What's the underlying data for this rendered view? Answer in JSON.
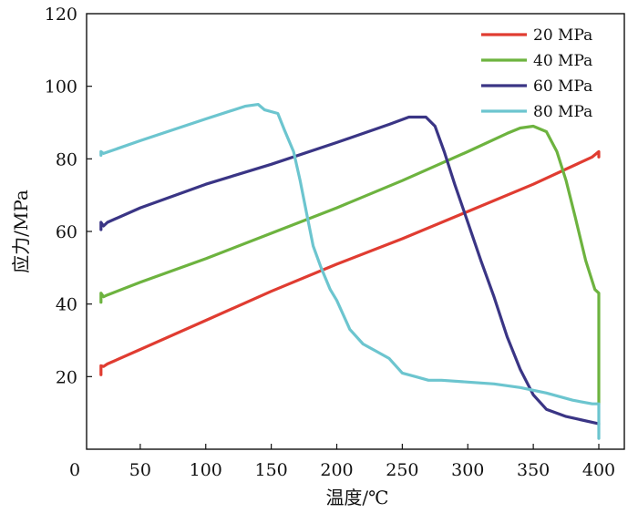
{
  "chart_data": {
    "type": "line",
    "xlabel": "温度/℃",
    "ylabel": "应力/MPa",
    "xlim": [
      0,
      400
    ],
    "ylim": [
      0,
      120
    ],
    "xticks": [
      0,
      50,
      100,
      150,
      200,
      250,
      300,
      350,
      400
    ],
    "yticks": [
      20,
      40,
      60,
      80,
      100,
      120
    ],
    "grid": false,
    "legend_position": "top-right",
    "series": [
      {
        "name": "20 MPa",
        "color": "#e03c31",
        "points": [
          [
            20,
            20.5
          ],
          [
            20,
            23
          ],
          [
            22,
            22.8
          ],
          [
            25,
            23.5
          ],
          [
            50,
            27.5
          ],
          [
            100,
            35.5
          ],
          [
            150,
            43.5
          ],
          [
            200,
            51
          ],
          [
            250,
            58
          ],
          [
            300,
            65.5
          ],
          [
            350,
            73
          ],
          [
            395,
            80.5
          ],
          [
            400,
            82
          ],
          [
            400,
            80.5
          ]
        ]
      },
      {
        "name": "40 MPa",
        "color": "#6db33f",
        "points": [
          [
            20,
            40.5
          ],
          [
            20,
            43
          ],
          [
            22,
            42
          ],
          [
            25,
            42.5
          ],
          [
            50,
            46
          ],
          [
            100,
            52.5
          ],
          [
            150,
            59.5
          ],
          [
            200,
            66.5
          ],
          [
            250,
            74
          ],
          [
            300,
            82
          ],
          [
            330,
            87
          ],
          [
            340,
            88.5
          ],
          [
            350,
            89
          ],
          [
            360,
            87.5
          ],
          [
            368,
            82
          ],
          [
            375,
            74
          ],
          [
            382,
            64
          ],
          [
            390,
            52
          ],
          [
            397,
            44
          ],
          [
            400,
            43
          ],
          [
            400,
            14
          ],
          [
            400,
            12.5
          ]
        ]
      },
      {
        "name": "60 MPa",
        "color": "#3a3585",
        "points": [
          [
            20,
            60.5
          ],
          [
            20,
            62.5
          ],
          [
            22,
            61.5
          ],
          [
            25,
            62.5
          ],
          [
            50,
            66.5
          ],
          [
            100,
            73
          ],
          [
            150,
            78.5
          ],
          [
            200,
            84.5
          ],
          [
            240,
            89.5
          ],
          [
            255,
            91.5
          ],
          [
            268,
            91.5
          ],
          [
            275,
            89
          ],
          [
            282,
            82
          ],
          [
            290,
            73
          ],
          [
            300,
            62.5
          ],
          [
            310,
            52
          ],
          [
            320,
            42
          ],
          [
            330,
            31
          ],
          [
            340,
            22
          ],
          [
            350,
            15
          ],
          [
            360,
            11
          ],
          [
            375,
            9
          ],
          [
            400,
            7
          ]
        ]
      },
      {
        "name": "80 MPa",
        "color": "#6cc5cf",
        "points": [
          [
            20,
            81
          ],
          [
            20,
            82
          ],
          [
            22,
            81.5
          ],
          [
            50,
            85
          ],
          [
            100,
            91
          ],
          [
            130,
            94.5
          ],
          [
            140,
            95
          ],
          [
            145,
            93.5
          ],
          [
            155,
            92.5
          ],
          [
            160,
            88
          ],
          [
            167,
            82
          ],
          [
            172,
            74
          ],
          [
            177,
            65
          ],
          [
            182,
            56
          ],
          [
            188,
            50
          ],
          [
            195,
            44
          ],
          [
            200,
            41
          ],
          [
            210,
            33
          ],
          [
            220,
            29
          ],
          [
            230,
            27
          ],
          [
            240,
            25
          ],
          [
            250,
            21
          ],
          [
            260,
            20
          ],
          [
            270,
            19
          ],
          [
            280,
            19
          ],
          [
            300,
            18.5
          ],
          [
            320,
            18
          ],
          [
            340,
            17
          ],
          [
            360,
            15.5
          ],
          [
            380,
            13.5
          ],
          [
            395,
            12.5
          ],
          [
            400,
            12.5
          ],
          [
            400,
            3
          ]
        ]
      }
    ]
  }
}
